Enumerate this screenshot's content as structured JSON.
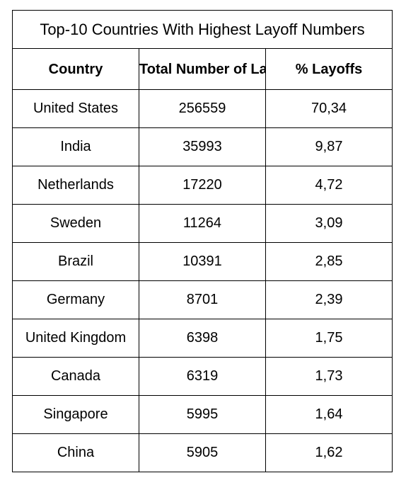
{
  "chart_data": {
    "type": "table",
    "title": "Top-10 Countries With Highest Layoff Numbers",
    "columns": [
      "Country",
      "Total Number of Layoffs",
      "% Layoffs"
    ],
    "rows": [
      [
        "United States",
        "256559",
        "70,34"
      ],
      [
        "India",
        "35993",
        "9,87"
      ],
      [
        "Netherlands",
        "17220",
        "4,72"
      ],
      [
        "Sweden",
        "11264",
        "3,09"
      ],
      [
        "Brazil",
        "10391",
        "2,85"
      ],
      [
        "Germany",
        "8701",
        "2,39"
      ],
      [
        "United Kingdom",
        "6398",
        "1,75"
      ],
      [
        "Canada",
        "6319",
        "1,73"
      ],
      [
        "Singapore",
        "5995",
        "1,64"
      ],
      [
        "China",
        "5905",
        "1,62"
      ]
    ]
  }
}
